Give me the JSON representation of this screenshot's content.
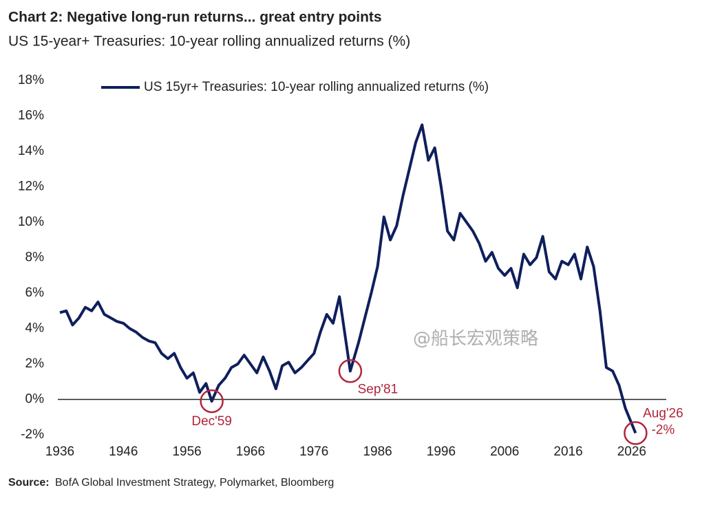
{
  "chart_data": {
    "type": "line",
    "title": "Chart 2: Negative long-run returns... great entry points",
    "subtitle": "US 15-year+ Treasuries: 10-year rolling annualized returns (%)",
    "source_label": "Source:",
    "source": "BofA Global Investment Strategy, Polymarket, Bloomberg",
    "watermark": "@船长宏观策略",
    "legend": "top",
    "x": [
      1936,
      1937,
      1938,
      1939,
      1940,
      1941,
      1942,
      1943,
      1944,
      1945,
      1946,
      1947,
      1948,
      1949,
      1950,
      1951,
      1952,
      1953,
      1954,
      1955,
      1956,
      1957,
      1958,
      1959,
      1959.9,
      1961,
      1962,
      1963,
      1964,
      1965,
      1966,
      1967,
      1968,
      1969,
      1970,
      1971,
      1972,
      1973,
      1974,
      1975,
      1976,
      1977,
      1978,
      1979,
      1980,
      1981.7,
      1983,
      1984,
      1985,
      1986,
      1987,
      1988,
      1989,
      1990,
      1991,
      1992,
      1993,
      1994,
      1995,
      1996,
      1997,
      1998,
      1999,
      2000,
      2001,
      2002,
      2003,
      2004,
      2005,
      2006,
      2007,
      2008,
      2009,
      2010,
      2011,
      2012,
      2013,
      2014,
      2015,
      2016,
      2017,
      2018,
      2019,
      2020,
      2021,
      2022,
      2023,
      2024,
      2025,
      2026.6
    ],
    "series": [
      {
        "name": "US 15yr+ Treasuries: 10-year rolling annualized returns (%)",
        "color": "#0f1f5c",
        "values": [
          4.9,
          5.0,
          4.2,
          4.6,
          5.2,
          5.0,
          5.5,
          4.8,
          4.6,
          4.4,
          4.3,
          4.0,
          3.8,
          3.5,
          3.3,
          3.2,
          2.6,
          2.3,
          2.6,
          1.8,
          1.2,
          1.5,
          0.4,
          0.9,
          -0.1,
          0.8,
          1.2,
          1.8,
          2.0,
          2.5,
          2.0,
          1.5,
          2.4,
          1.6,
          0.6,
          1.9,
          2.1,
          1.5,
          1.8,
          2.2,
          2.6,
          3.8,
          4.8,
          4.3,
          5.8,
          1.6,
          3.2,
          4.6,
          6.0,
          7.5,
          10.3,
          9.0,
          9.8,
          11.5,
          13.0,
          14.5,
          15.5,
          13.5,
          14.2,
          12.0,
          9.5,
          9.0,
          10.5,
          10.0,
          9.5,
          8.8,
          7.8,
          8.3,
          7.4,
          7.0,
          7.4,
          6.3,
          8.2,
          7.6,
          8.0,
          9.2,
          7.2,
          6.8,
          7.8,
          7.6,
          8.2,
          6.8,
          8.6,
          7.5,
          5.0,
          1.8,
          1.6,
          0.8,
          -0.5,
          -1.9
        ]
      }
    ],
    "annotations": [
      {
        "text": "Dec'59",
        "x": 1959.9,
        "y": -0.1
      },
      {
        "text": "Sep'81",
        "x": 1981.7,
        "y": 1.6
      },
      {
        "text": "Aug'26",
        "x": 2026.6,
        "y": -1.9,
        "value_label": "-2%"
      }
    ],
    "annotation_color": "#b0243a",
    "xlim": [
      1936,
      2031
    ],
    "xticks": [
      1936,
      1946,
      1956,
      1966,
      1976,
      1986,
      1996,
      2006,
      2016,
      2026
    ],
    "ylim": [
      -2,
      18
    ],
    "yticks": [
      {
        "value": -2,
        "label": "-2%"
      },
      {
        "value": 0,
        "label": "0%"
      },
      {
        "value": 2,
        "label": "2%"
      },
      {
        "value": 4,
        "label": "4%"
      },
      {
        "value": 6,
        "label": "6%"
      },
      {
        "value": 8,
        "label": "8%"
      },
      {
        "value": 10,
        "label": "10%"
      },
      {
        "value": 12,
        "label": "12%"
      },
      {
        "value": 14,
        "label": "14%"
      },
      {
        "value": 16,
        "label": "16%"
      },
      {
        "value": 18,
        "label": "18%"
      }
    ]
  }
}
